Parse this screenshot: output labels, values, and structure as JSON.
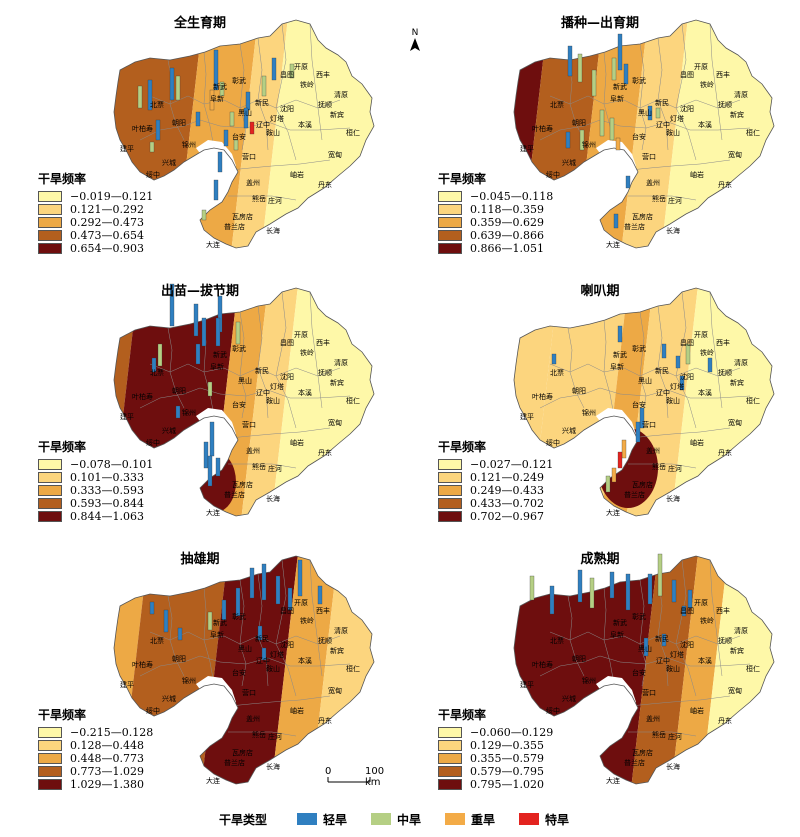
{
  "colors": [
    "#fef8a8",
    "#fcd57e",
    "#eda945",
    "#b35f1e",
    "#6e0e0e"
  ],
  "legend_title": "干旱频率",
  "cities": [
    "新武",
    "彰武",
    "开原",
    "昌图",
    "铁岭",
    "阜新",
    "新民",
    "西丰",
    "抚顺",
    "清原",
    "朝阳",
    "黑山",
    "沈阳",
    "新宾",
    "北票",
    "叶柏寿",
    "锦州",
    "台安",
    "辽中",
    "本溪",
    "桓仁",
    "兴城",
    "营口",
    "鞍山",
    "灯塔",
    "宽甸",
    "绥中",
    "盖州",
    "熊岳",
    "岫岩",
    "丹东",
    "瓦房店",
    "庄河",
    "长海",
    "普兰店",
    "大连",
    "建平"
  ],
  "panels": [
    {
      "title": "全生育期",
      "legend": [
        "−0.019—0.121",
        "0.121—0.292",
        "0.292—0.473",
        "0.473—0.654",
        "0.654—0.903"
      ]
    },
    {
      "title": "播种—出育期",
      "legend": [
        "−0.045—0.118",
        "0.118—0.359",
        "0.359—0.629",
        "0.639—0.866",
        "0.866—1.051"
      ]
    },
    {
      "title": "出苗—拔节期",
      "legend": [
        "−0.078—0.101",
        "0.101—0.333",
        "0.333—0.593",
        "0.593—0.844",
        "0.844—1.063"
      ]
    },
    {
      "title": "喇叭期",
      "legend": [
        "−0.027—0.121",
        "0.121—0.249",
        "0.249—0.433",
        "0.433—0.702",
        "0.702—0.967"
      ]
    },
    {
      "title": "抽雄期",
      "legend": [
        "−0.215—0.128",
        "0.128—0.448",
        "0.448—0.773",
        "0.773—1.029",
        "1.029—1.380"
      ]
    },
    {
      "title": "成熟期",
      "legend": [
        "−0.060—0.129",
        "0.129—0.355",
        "0.355—0.579",
        "0.579—0.795",
        "0.795—1.020"
      ]
    }
  ],
  "north_label": "N",
  "scale": {
    "zero": "0",
    "label": "100 km"
  },
  "drought_types": {
    "title": "干旱类型",
    "items": [
      {
        "label": "轻旱",
        "color": "#2f7fc0"
      },
      {
        "label": "中旱",
        "color": "#b5cf84"
      },
      {
        "label": "重旱",
        "color": "#f3ab47"
      },
      {
        "label": "特旱",
        "color": "#e3231f"
      }
    ]
  }
}
